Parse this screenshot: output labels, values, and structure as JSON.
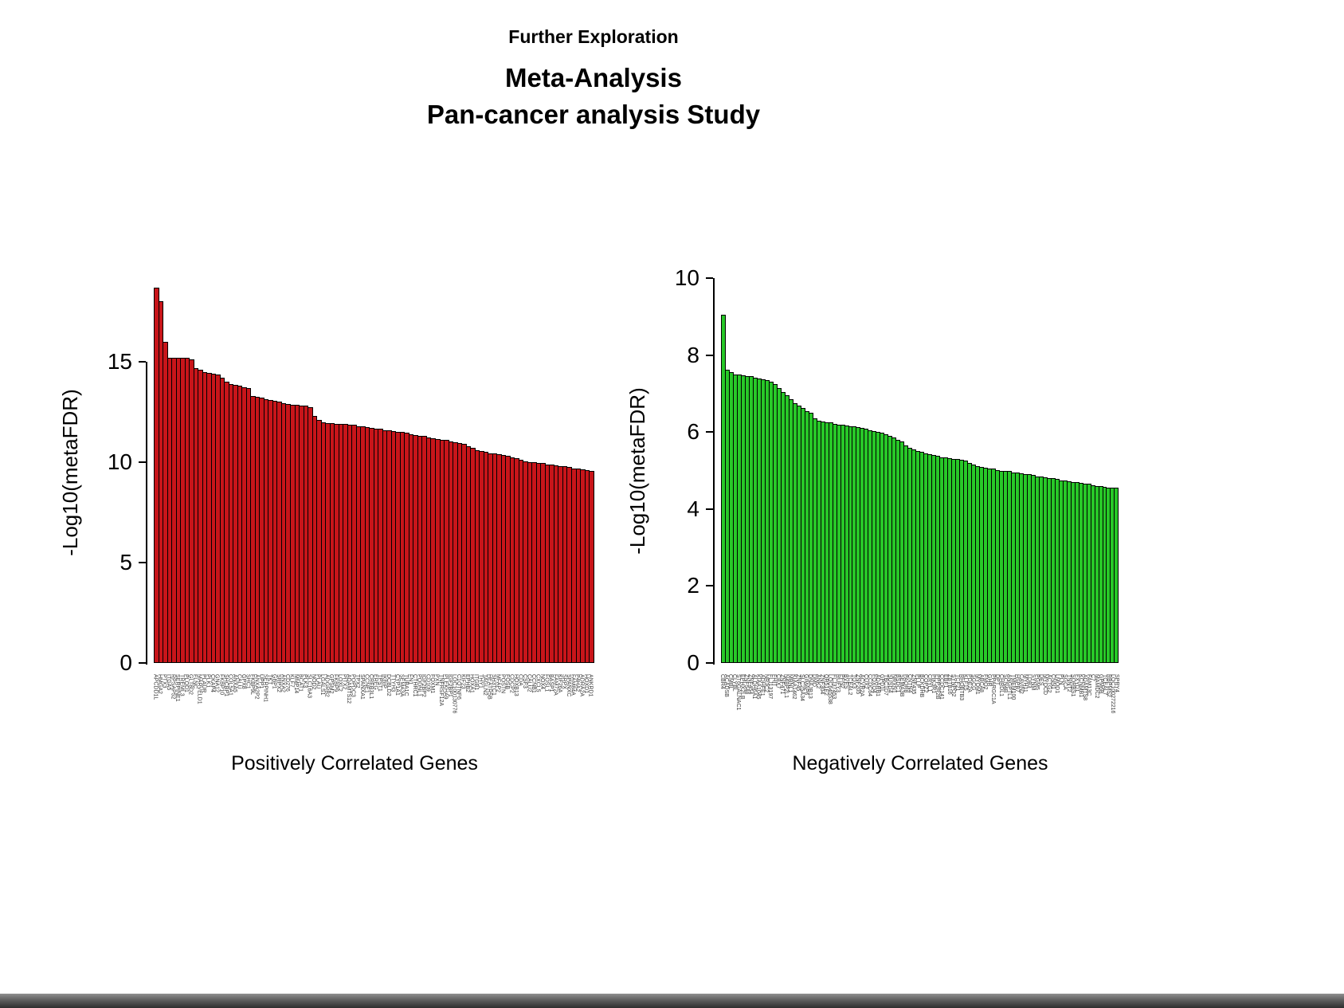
{
  "header": {
    "subtitle": "Further Exploration",
    "title_line1": "Meta-Analysis",
    "title_line2": "Pan-cancer analysis Study"
  },
  "chart_data": [
    {
      "type": "bar",
      "title": "",
      "xlabel": "Positively Correlated Genes",
      "ylabel": "-Log10(metaFDR)",
      "ylim": [
        0,
        19
      ],
      "yticks": [
        0,
        5,
        10,
        15
      ],
      "grid": false,
      "legend": "none",
      "bar_color": "#C8151A",
      "bar_border": "#000000",
      "categories": [
        "APCDD1L",
        "HMGA2",
        "PTX3",
        "ITGA5",
        "RPSAP52",
        "SERPINE1",
        "TREML3",
        "PLOD1",
        "GLT8D2",
        "FLNC",
        "MARVELD1",
        "PLAUR",
        "PLK1",
        "CKAP4",
        "GNA12",
        "FKBP10",
        "SHCBP1",
        "COL5A1",
        "ANXA5",
        "CALU",
        "GPX8",
        "SHC1",
        "FKBP9L",
        "ANXA2P2",
        "UPP1",
        "SERPINH1",
        "TKT",
        "GBP1",
        "SRPX2",
        "ANXA2",
        "CD276",
        "KLF7",
        "MMP14",
        "BCAT1",
        "PLK3",
        "SLC16A3",
        "NOD2",
        "PLAU",
        "LGALS1",
        "ADGRB2",
        "GPSM2",
        "FKBP9",
        "LOXL2",
        "PITX2",
        "ADAMTS12",
        "POPDC3",
        "TPX2",
        "SPANXA1",
        "CCNE1",
        "CREB3L1",
        "EREG",
        "TPST1",
        "IKBIP",
        "DCBLD2",
        "TTYH3",
        "CYP1A1",
        "SEMA3A",
        "TUBA1C",
        "FN1",
        "CTHRC1",
        "PODNL1",
        "IGF2BP2",
        "CD109",
        "FOXM1",
        "PXN",
        "TNFRSF12A",
        "PLEKHA9",
        "IGF2BP1",
        "LOC100130776",
        "C1QTNF6",
        "KIF23",
        "EPHB2",
        "HOXA1",
        "ITGB1",
        "THY1",
        "TAGLN2",
        "HEATR5B",
        "SH3TC1",
        "MFAP2",
        "POSTN",
        "FOSB",
        "CDCP2",
        "HOXB13",
        "CDA",
        "CSF3",
        "CALU2",
        "CCNB1",
        "CXCL5",
        "NOX4",
        "FOSL1",
        "BASP1",
        "FAM72A",
        "KIF26A",
        "SRPX",
        "SPANXC",
        "FAM84A",
        "P4HA2",
        "ADRA2A",
        "HOXD1",
        "ANKRD1"
      ],
      "values": [
        18.7,
        18.0,
        16.0,
        15.2,
        15.2,
        15.2,
        15.2,
        15.2,
        15.1,
        14.7,
        14.6,
        14.5,
        14.45,
        14.4,
        14.35,
        14.2,
        14.0,
        13.9,
        13.85,
        13.8,
        13.75,
        13.7,
        13.3,
        13.25,
        13.2,
        13.15,
        13.1,
        13.05,
        13.0,
        12.95,
        12.9,
        12.85,
        12.85,
        12.8,
        12.8,
        12.75,
        12.3,
        12.1,
        12.0,
        11.95,
        11.95,
        11.9,
        11.9,
        11.9,
        11.85,
        11.85,
        11.8,
        11.8,
        11.75,
        11.7,
        11.65,
        11.65,
        11.6,
        11.6,
        11.55,
        11.5,
        11.5,
        11.45,
        11.4,
        11.35,
        11.3,
        11.3,
        11.25,
        11.2,
        11.15,
        11.1,
        11.1,
        11.05,
        11.0,
        10.95,
        10.9,
        10.8,
        10.7,
        10.6,
        10.55,
        10.5,
        10.45,
        10.45,
        10.4,
        10.35,
        10.3,
        10.25,
        10.2,
        10.1,
        10.05,
        10.0,
        10.0,
        9.95,
        9.95,
        9.9,
        9.9,
        9.85,
        9.8,
        9.8,
        9.75,
        9.7,
        9.7,
        9.65,
        9.6,
        9.55
      ]
    },
    {
      "type": "bar",
      "title": "",
      "xlabel": "Negatively Correlated Genes",
      "ylabel": "-Log10(metaFDR)",
      "ylim": [
        0,
        10
      ],
      "yticks": [
        0,
        2,
        4,
        6,
        8,
        10
      ],
      "grid": false,
      "legend": "none",
      "bar_color": "#28C828",
      "bar_border": "#000000",
      "categories": [
        "CBR4",
        "ACADSB",
        "CMBL",
        "CLYBL",
        "ST6GALNAC1",
        "EPHX2LB",
        "ZNF548",
        "ZNF454",
        "ALDH6A1",
        "KIAA1045",
        "ADHFE1",
        "NR3C2",
        "FLJ13197",
        "FHIT",
        "CBX7",
        "ZNF471",
        "N4BP2L1",
        "MBNL1",
        "KIAA1462",
        "ZNF45",
        "SLC25A34",
        "GIMAP6",
        "DNAJB13",
        "DMD",
        "ANK2",
        "ZNF304",
        "OR51E2",
        "LOC645538",
        "FLJ37453",
        "RUFY3",
        "PFN2",
        "BVES",
        "TCEAL2",
        "TOX3",
        "ZNF205",
        "ACVR2A",
        "CUX2",
        "CCDC64",
        "FOXO4",
        "ADARB1",
        "GPD1L",
        "TBC1D7",
        "SUSD4",
        "NRXN1",
        "BSDC1",
        "SEMA3B",
        "PAQR8",
        "CNTN4",
        "ZNF435",
        "PLLP",
        "BCKDHB",
        "COPZ2",
        "CRYL1",
        "PIK3R1",
        "PPP2R2B",
        "CCDC141",
        "EBF1",
        "ZBTB16",
        "SYNPO2",
        "TCF21",
        "RHOBTB3",
        "KLF15",
        "PDE2A",
        "SGCG",
        "MYOM1",
        "ABCA8",
        "FMO2",
        "GHR",
        "PPARGC1A",
        "DPT",
        "CHRDL1",
        "SCN4B",
        "ANGPTL1",
        "TMEM100",
        "HSPB7",
        "CAVIN2",
        "MYH11",
        "LDB3",
        "SYNM",
        "PGM5",
        "DES",
        "MYOCD",
        "ACTG2",
        "CNN1",
        "LMOD1",
        "PLN",
        "SGCA",
        "TNNT2",
        "SORBS1",
        "FXYD1",
        "KCNMB1",
        "ADAMTS8",
        "FAM13C",
        "C7",
        "MAMDC2",
        "GPM6B",
        "TCEAL7",
        "RBPMS2",
        "LOC100272216",
        "SPRY4"
      ],
      "values": [
        9.05,
        7.62,
        7.55,
        7.5,
        7.5,
        7.48,
        7.45,
        7.45,
        7.42,
        7.4,
        7.38,
        7.35,
        7.3,
        7.25,
        7.15,
        7.05,
        6.95,
        6.85,
        6.75,
        6.68,
        6.62,
        6.55,
        6.5,
        6.35,
        6.3,
        6.28,
        6.25,
        6.25,
        6.22,
        6.2,
        6.2,
        6.18,
        6.15,
        6.15,
        6.12,
        6.1,
        6.08,
        6.05,
        6.02,
        6.0,
        5.98,
        5.95,
        5.9,
        5.85,
        5.8,
        5.75,
        5.65,
        5.6,
        5.55,
        5.5,
        5.48,
        5.45,
        5.42,
        5.4,
        5.38,
        5.35,
        5.35,
        5.32,
        5.3,
        5.3,
        5.28,
        5.25,
        5.2,
        5.15,
        5.12,
        5.1,
        5.08,
        5.05,
        5.05,
        5.02,
        5.0,
        5.0,
        4.98,
        4.95,
        4.95,
        4.92,
        4.9,
        4.9,
        4.88,
        4.85,
        4.85,
        4.82,
        4.8,
        4.8,
        4.78,
        4.75,
        4.75,
        4.72,
        4.7,
        4.7,
        4.68,
        4.65,
        4.65,
        4.62,
        4.6,
        4.6,
        4.58,
        4.56,
        4.55,
        4.55
      ]
    }
  ]
}
